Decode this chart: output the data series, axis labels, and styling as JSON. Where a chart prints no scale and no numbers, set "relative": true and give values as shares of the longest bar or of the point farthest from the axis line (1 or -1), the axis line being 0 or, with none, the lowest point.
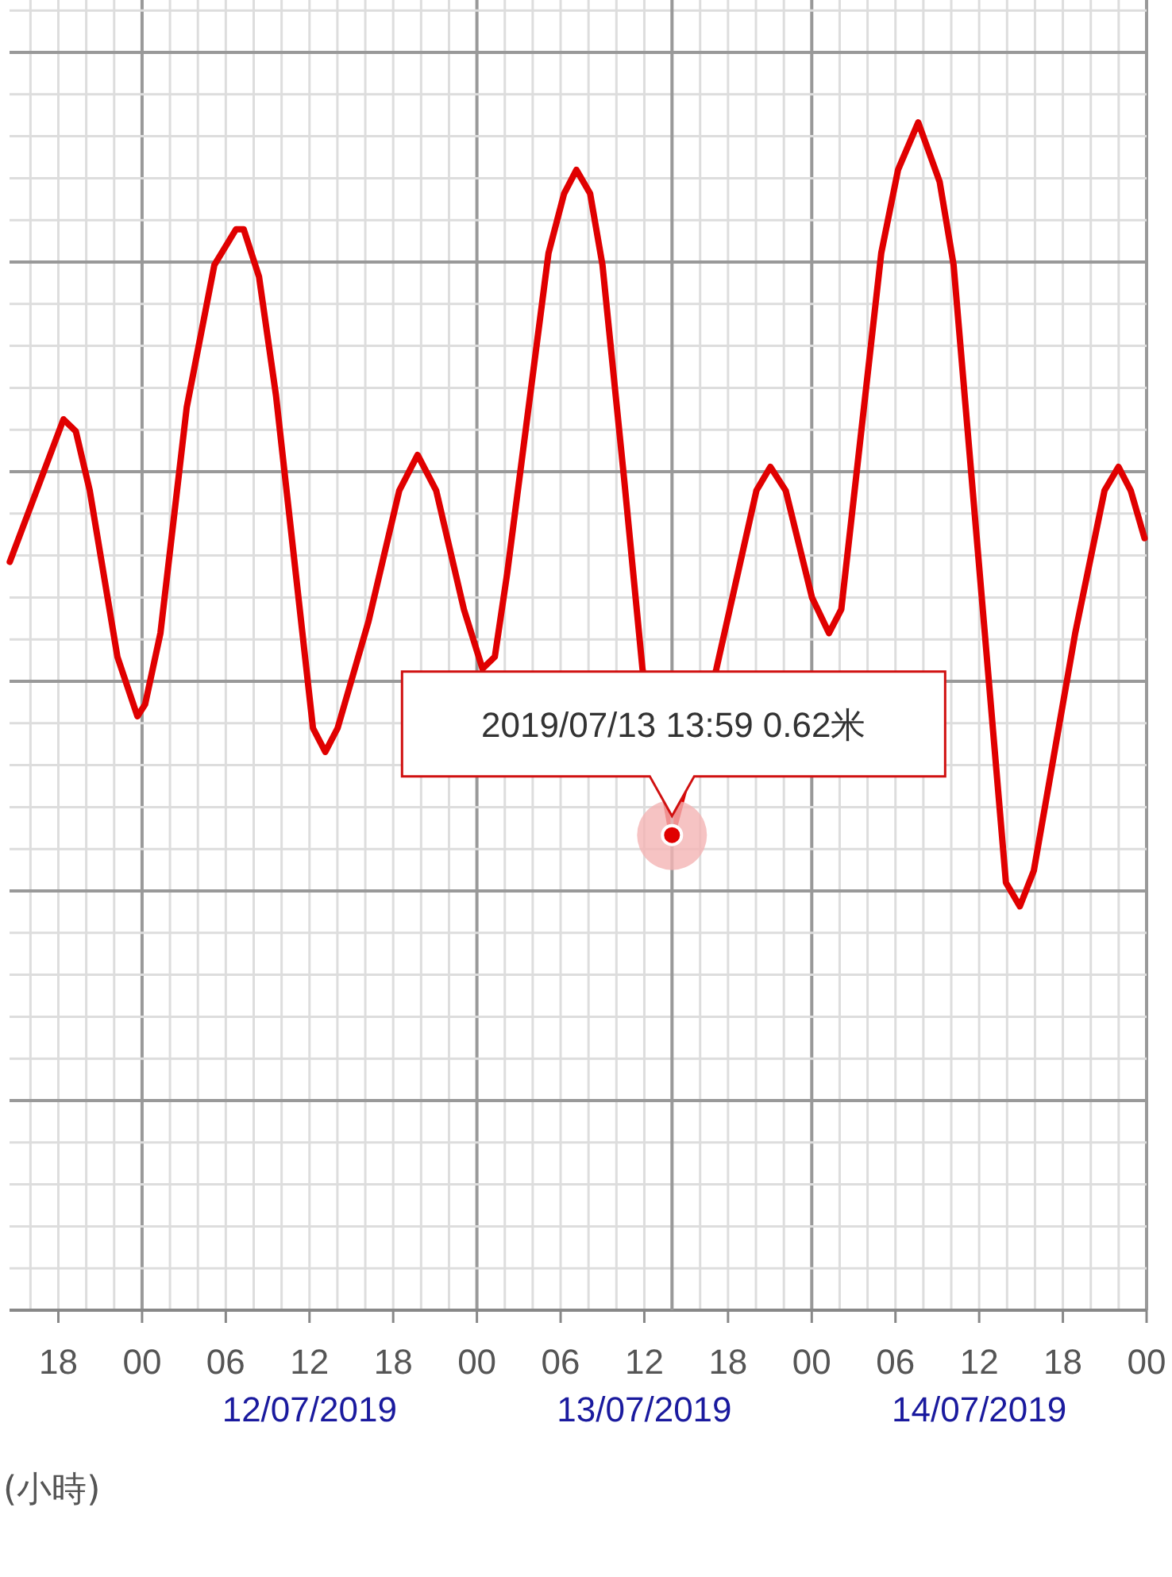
{
  "chart_data": {
    "type": "line",
    "relative": true,
    "xlabel": "(小時)",
    "grid": true,
    "x": [
      "2019-07-11T14:31",
      "2019-07-11T18:22",
      "2019-07-11T19:15",
      "2019-07-11T20:15",
      "2019-07-11T22:14",
      "2019-07-11T23:40",
      "2019-07-12T00:13",
      "2019-07-12T01:19",
      "2019-07-12T03:12",
      "2019-07-12T05:11",
      "2019-07-12T06:44",
      "2019-07-12T07:17",
      "2019-07-12T08:23",
      "2019-07-12T09:36",
      "2019-07-12T12:15",
      "2019-07-12T13:08",
      "2019-07-12T14:01",
      "2019-07-12T16:14",
      "2019-07-12T18:26",
      "2019-07-12T19:45",
      "2019-07-12T21:05",
      "2019-07-12T23:04",
      "2019-07-13T00:24",
      "2019-07-13T01:17",
      "2019-07-13T02:10",
      "2019-07-13T05:08",
      "2019-07-13T06:15",
      "2019-07-13T07:08",
      "2019-07-13T08:07",
      "2019-07-13T09:00",
      "2019-07-13T10:33",
      "2019-07-13T11:52",
      "2019-07-13T13:59",
      "2019-07-13T17:10",
      "2019-07-13T20:02",
      "2019-07-13T21:02",
      "2019-07-13T22:08",
      "2019-07-14T00:01",
      "2019-07-14T01:14",
      "2019-07-14T02:07",
      "2019-07-14T04:59",
      "2019-07-14T06:11",
      "2019-07-14T07:38",
      "2019-07-14T09:10",
      "2019-07-14T10:10",
      "2019-07-14T13:55",
      "2019-07-14T14:55",
      "2019-07-14T15:55",
      "2019-07-14T18:53",
      "2019-07-14T20:59",
      "2019-07-14T21:59",
      "2019-07-14T22:52",
      "2019-07-14T23:51"
    ],
    "series": [
      {
        "color": "#e00000",
        "values": [
          0.63,
          0.75,
          0.74,
          0.69,
          0.55,
          0.5,
          0.51,
          0.57,
          0.76,
          0.88,
          0.91,
          0.91,
          0.87,
          0.77,
          0.49,
          0.47,
          0.49,
          0.58,
          0.69,
          0.72,
          0.69,
          0.59,
          0.54,
          0.55,
          0.62,
          0.89,
          0.94,
          0.96,
          0.94,
          0.88,
          0.7,
          0.54,
          0.4,
          0.54,
          0.69,
          0.71,
          0.69,
          0.6,
          0.57,
          0.59,
          0.89,
          0.96,
          1.0,
          0.95,
          0.88,
          0.36,
          0.34,
          0.37,
          0.57,
          0.69,
          0.71,
          0.69,
          0.65
        ]
      }
    ],
    "xlim": [
      "2019-07-11T14:30",
      "2019-07-15T00:00"
    ],
    "xticks": [
      {
        "value": "2019-07-11T18:00",
        "label": "18"
      },
      {
        "value": "2019-07-12T00:00",
        "label": "00"
      },
      {
        "value": "2019-07-12T06:00",
        "label": "06"
      },
      {
        "value": "2019-07-12T12:00",
        "label": "12\n12/07/2019"
      },
      {
        "value": "2019-07-12T18:00",
        "label": "18"
      },
      {
        "value": "2019-07-13T00:00",
        "label": "00"
      },
      {
        "value": "2019-07-13T06:00",
        "label": "06"
      },
      {
        "value": "2019-07-13T12:00",
        "label": "12\n13/07/2019"
      },
      {
        "value": "2019-07-13T18:00",
        "label": "18"
      },
      {
        "value": "2019-07-14T00:00",
        "label": "00"
      },
      {
        "value": "2019-07-14T06:00",
        "label": "06"
      },
      {
        "value": "2019-07-14T12:00",
        "label": "12\n14/07/2019"
      },
      {
        "value": "2019-07-14T18:00",
        "label": "18"
      },
      {
        "value": "2019-07-15T00:00",
        "label": "00"
      }
    ],
    "annotations": [
      {
        "text": "2019/07/13 13:59 0.62米",
        "x": "2019-07-13T13:59",
        "y": 0.4
      }
    ]
  }
}
